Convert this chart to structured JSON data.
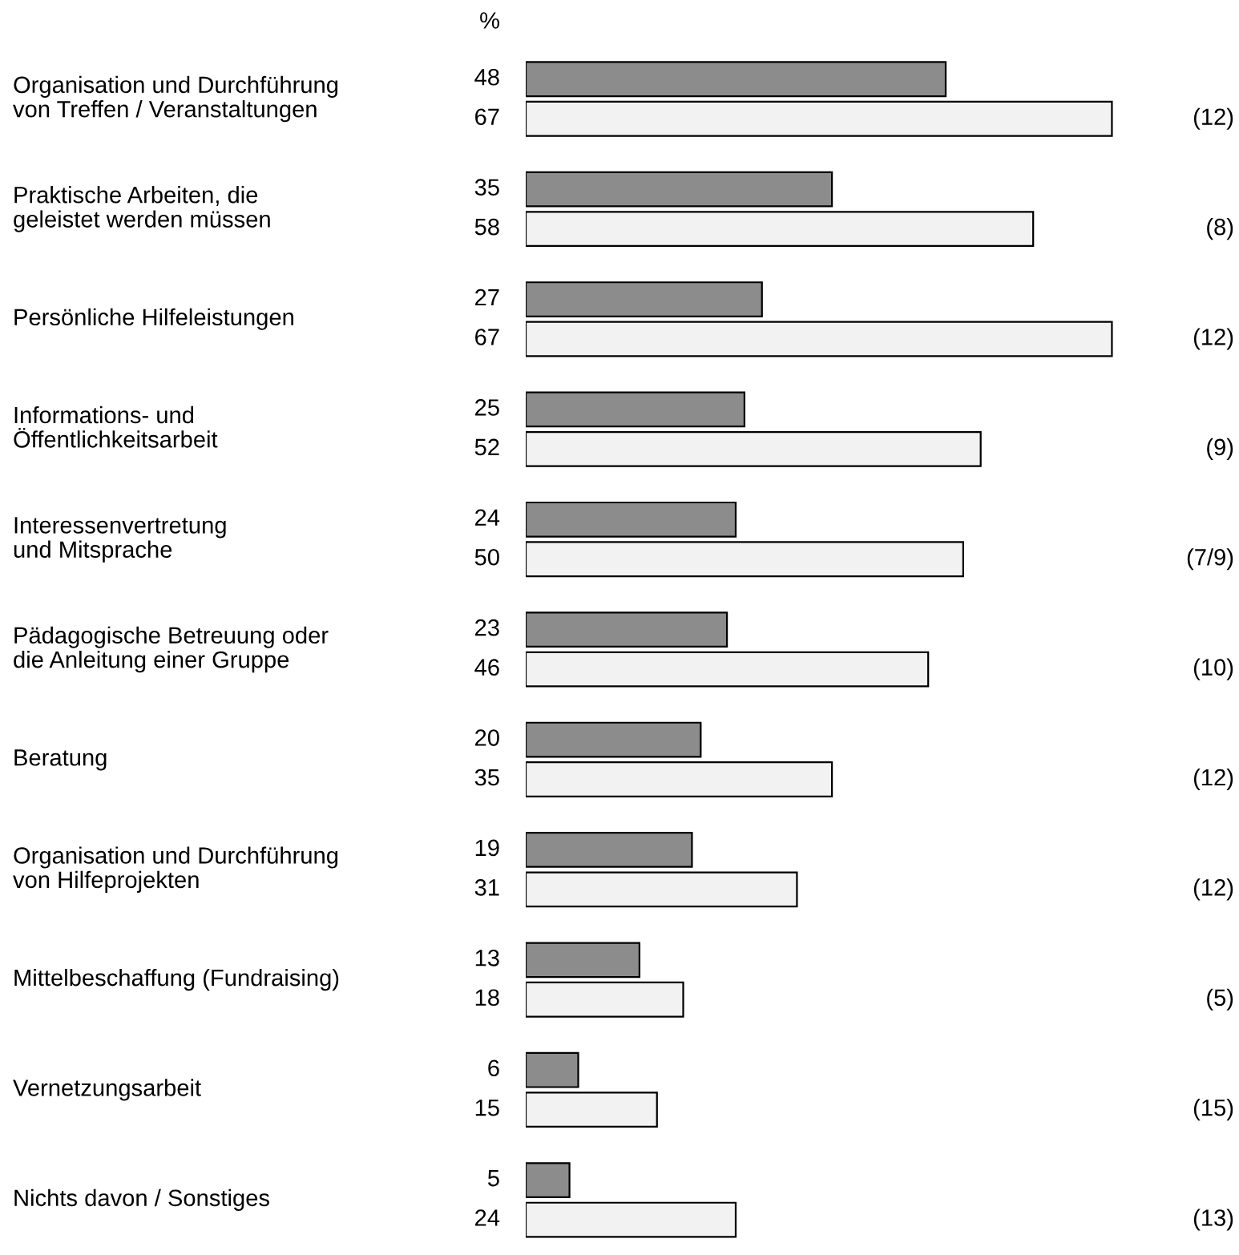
{
  "chart_data": {
    "type": "bar",
    "orientation": "horizontal",
    "xlabel": "%",
    "categories": [
      "Organisation und Durchführung\nvon Treffen / Veranstaltungen",
      "Praktische Arbeiten, die\ngeleistet werden müssen",
      "Persönliche Hilfeleistungen",
      "Informations- und\nÖffentlichkeitsarbeit",
      "Interessenvertretung\nund Mitsprache",
      "Pädagogische Betreuung oder\ndie Anleitung einer Gruppe",
      "Beratung",
      "Organisation und Durchführung\nvon Hilfeprojekten",
      "Mittelbeschaffung (Fundraising)",
      "Vernetzungsarbeit",
      "Nichts davon / Sonstiges"
    ],
    "series": [
      {
        "color": "#8c8c8c",
        "values": [
          48,
          35,
          27,
          25,
          24,
          23,
          20,
          19,
          13,
          6,
          5
        ]
      },
      {
        "color": "#f2f2f2",
        "values": [
          67,
          58,
          67,
          52,
          50,
          46,
          35,
          31,
          18,
          15,
          24
        ]
      }
    ],
    "annotations": [
      "(12)",
      "(8)",
      "(12)",
      "(9)",
      "(7/9)",
      "(10)",
      "(12)",
      "(12)",
      "(5)",
      "(15)",
      "(13)"
    ],
    "data_labels": true,
    "tick_labels": false
  }
}
